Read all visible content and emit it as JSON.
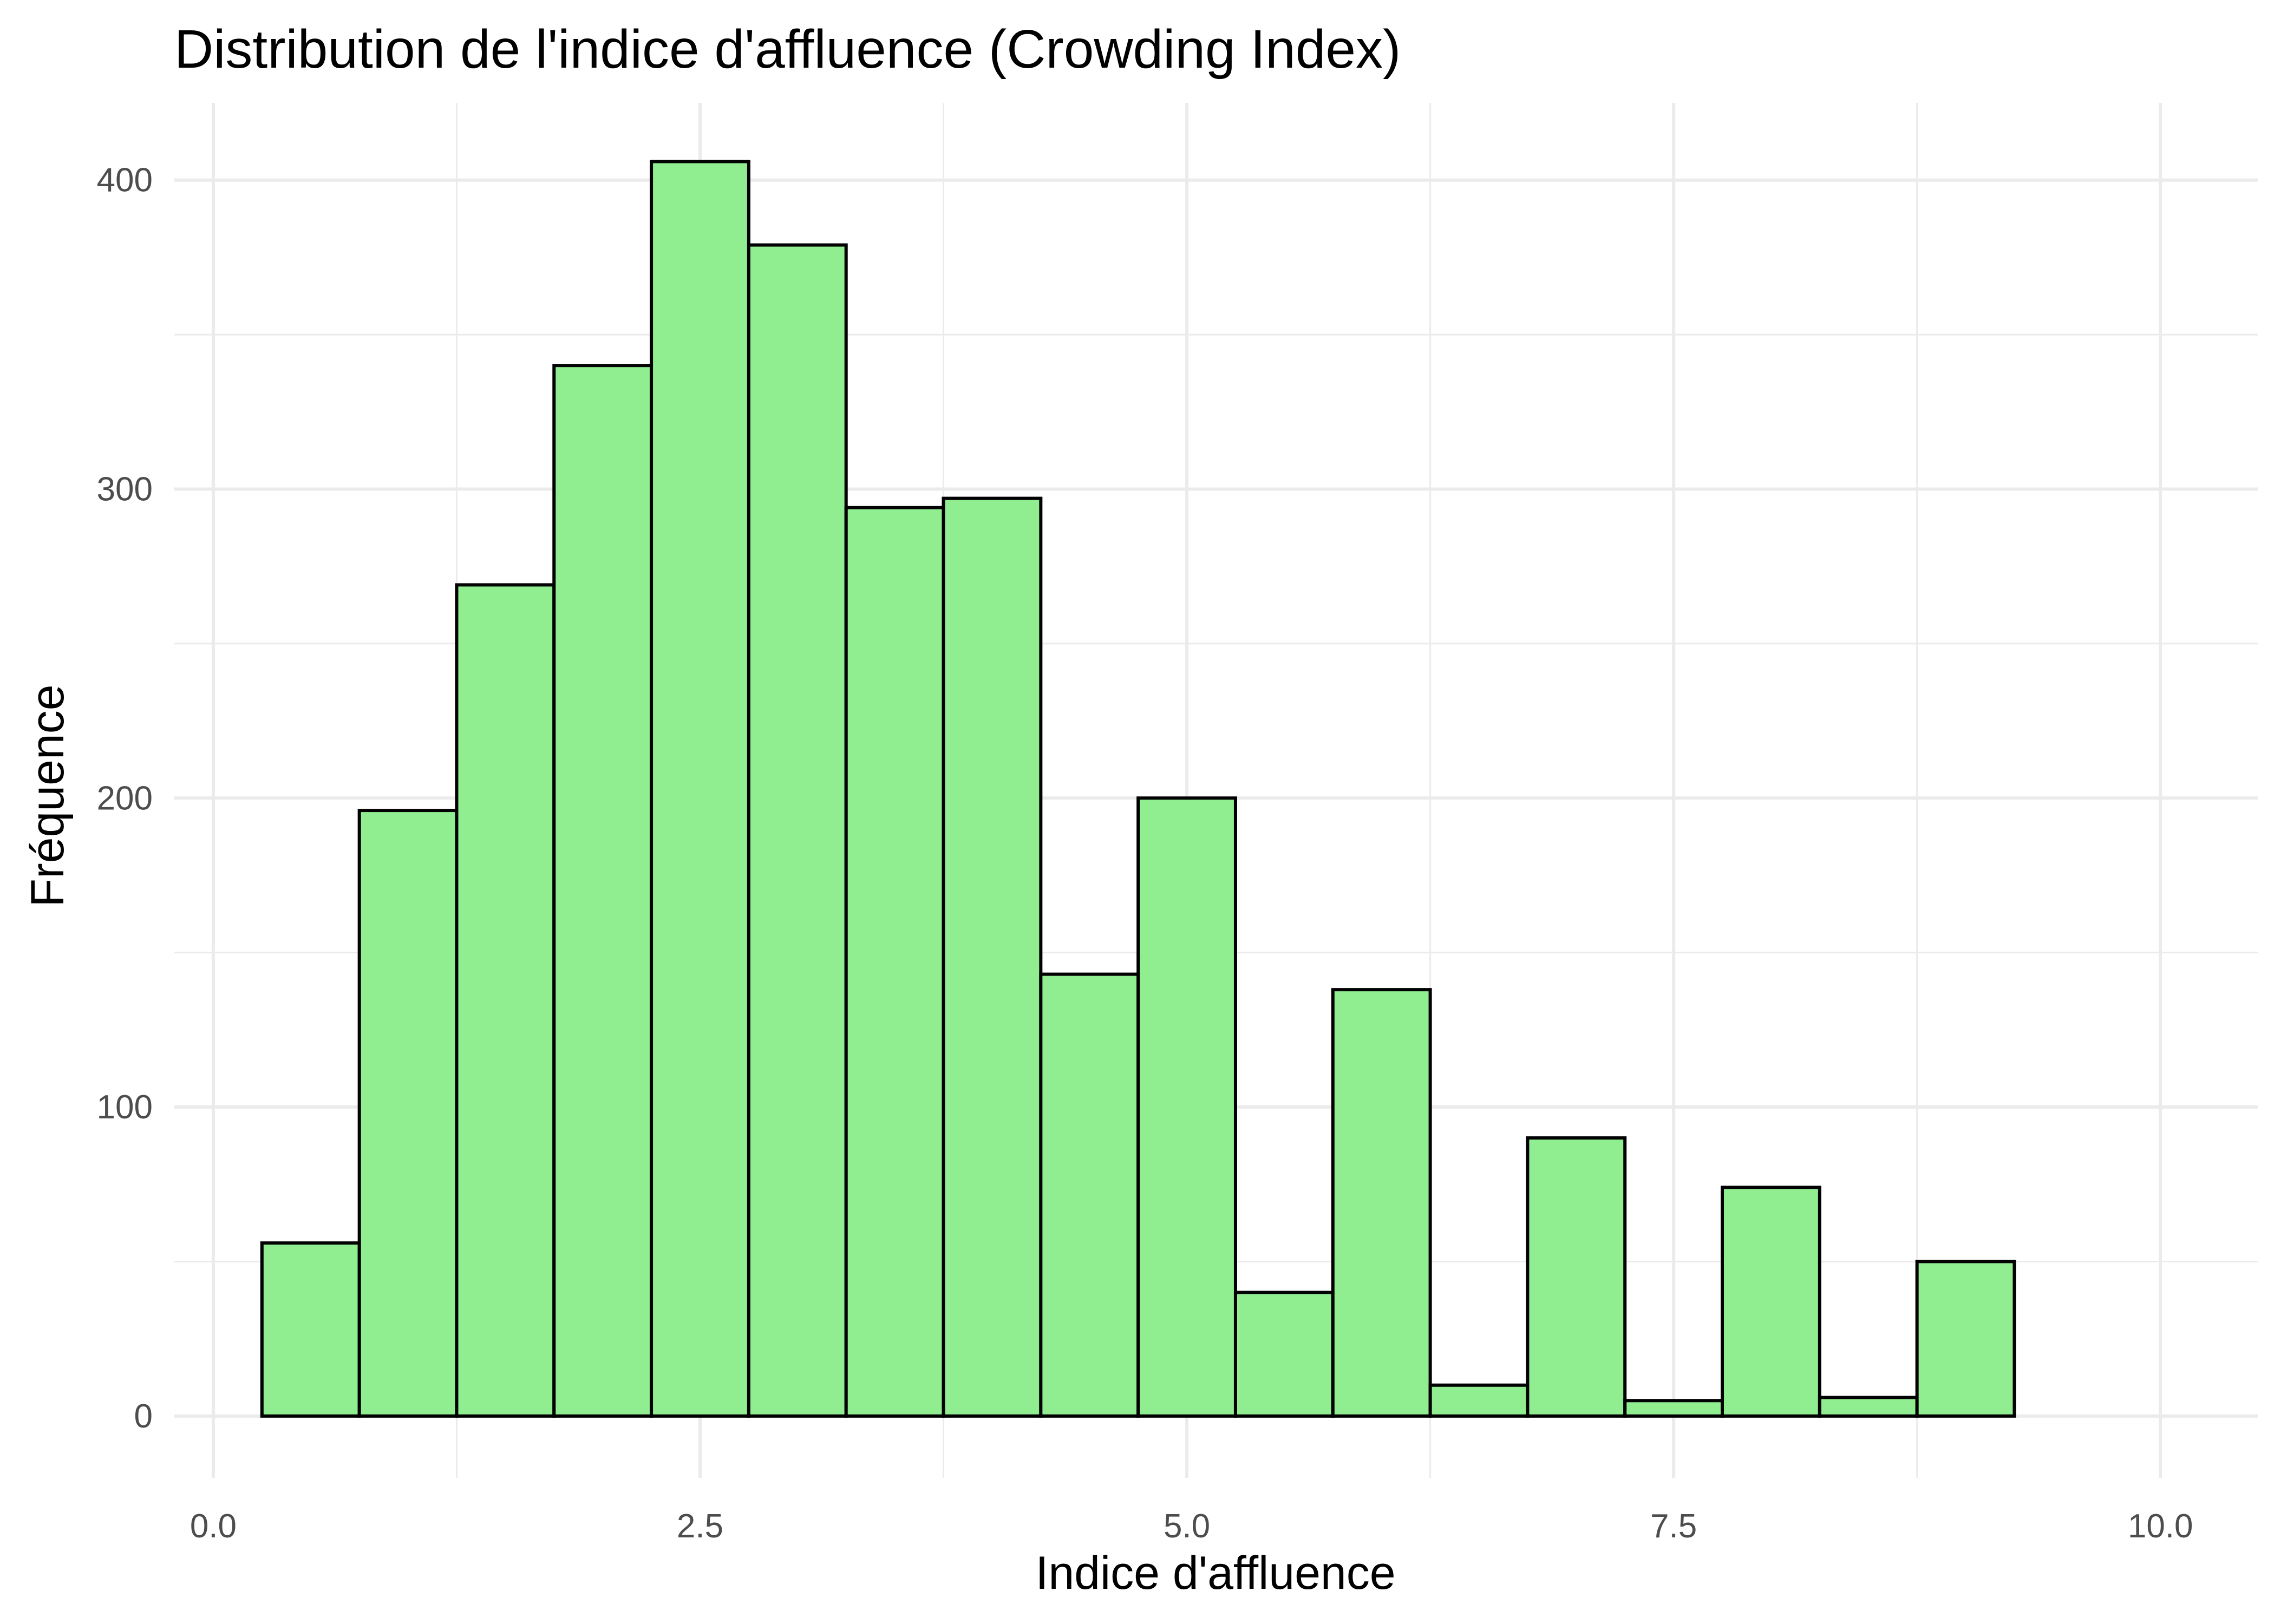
{
  "chart_data": {
    "type": "histogram",
    "title": "Distribution de l'indice d'affluence (Crowding Index)",
    "xlabel": "Indice d'affluence",
    "ylabel": "Fréquence",
    "xlim": [
      -0.2,
      10.5
    ],
    "ylim": [
      -20,
      425
    ],
    "x_ticks": [
      0,
      2.5,
      5,
      7.5,
      10
    ],
    "x_tick_labels": [
      "0.0",
      "2.5",
      "5.0",
      "7.5",
      "10.0"
    ],
    "y_ticks": [
      0,
      100,
      200,
      300,
      400
    ],
    "y_tick_labels": [
      "0",
      "100",
      "200",
      "300",
      "400"
    ],
    "bin_width": 0.5,
    "bins": [
      {
        "start": 0.25,
        "end": 0.75,
        "count": 56
      },
      {
        "start": 0.75,
        "end": 1.25,
        "count": 196
      },
      {
        "start": 1.25,
        "end": 1.75,
        "count": 269
      },
      {
        "start": 1.75,
        "end": 2.25,
        "count": 340
      },
      {
        "start": 2.25,
        "end": 2.75,
        "count": 406
      },
      {
        "start": 2.75,
        "end": 3.25,
        "count": 379
      },
      {
        "start": 3.25,
        "end": 3.75,
        "count": 294
      },
      {
        "start": 3.75,
        "end": 4.25,
        "count": 297
      },
      {
        "start": 4.25,
        "end": 4.75,
        "count": 143
      },
      {
        "start": 4.75,
        "end": 5.25,
        "count": 200
      },
      {
        "start": 5.25,
        "end": 5.75,
        "count": 40
      },
      {
        "start": 5.75,
        "end": 6.25,
        "count": 138
      },
      {
        "start": 6.25,
        "end": 6.75,
        "count": 10
      },
      {
        "start": 6.75,
        "end": 7.25,
        "count": 90
      },
      {
        "start": 7.25,
        "end": 7.75,
        "count": 5
      },
      {
        "start": 7.75,
        "end": 8.25,
        "count": 74
      },
      {
        "start": 8.25,
        "end": 8.75,
        "count": 6
      },
      {
        "start": 8.75,
        "end": 9.25,
        "count": 50
      },
      {
        "start": 9.25,
        "end": 9.75,
        "count": 0
      }
    ],
    "grid": true,
    "bar_fill": "#90ee90",
    "bar_outline": "#000000"
  }
}
